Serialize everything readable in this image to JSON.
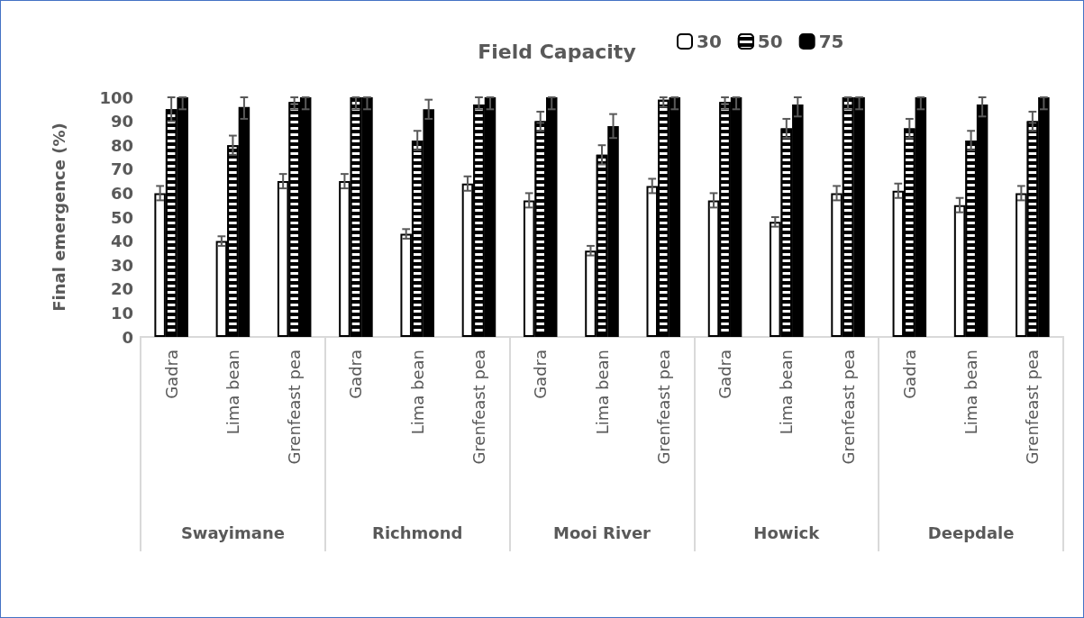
{
  "chart_data": {
    "type": "bar",
    "title": "Field Capacity",
    "ylabel": "Final emergence (%)",
    "categories": [
      "Gadra",
      "Lima bean",
      "Grenfeast pea",
      "Gadra",
      "Lima bean",
      "Grenfeast pea",
      "Gadra",
      "Lima bean",
      "Grenfeast pea",
      "Gadra",
      "Lima bean",
      "Grenfeast pea",
      "Gadra",
      "Lima bean",
      "Grenfeast pea"
    ],
    "annotations": [
      "Swayimane",
      "Richmond",
      "Mooi River",
      "Howick",
      "Deepdale"
    ],
    "series": [
      {
        "name": "30",
        "color": "#ffffff",
        "values": [
          60,
          40,
          65,
          65,
          43,
          64,
          57,
          36,
          63,
          57,
          48,
          60,
          61,
          55,
          60
        ],
        "errors": [
          3,
          2,
          3,
          3,
          2,
          3,
          3,
          2,
          3,
          3,
          2,
          3,
          3,
          3,
          3
        ]
      },
      {
        "name": "50",
        "color": "#000000",
        "values": [
          95,
          80,
          98,
          100,
          82,
          97,
          90,
          76,
          99,
          98,
          87,
          100,
          87,
          82,
          90
        ],
        "errors": [
          [
            90,
            100
          ],
          4,
          [
            95,
            100
          ],
          [
            95,
            100
          ],
          4,
          [
            95,
            100
          ],
          4,
          4,
          [
            96,
            100
          ],
          [
            95,
            100
          ],
          4,
          [
            95,
            100
          ],
          4,
          4,
          4
        ]
      },
      {
        "name": "75",
        "color": "#000000",
        "values": [
          100,
          96,
          100,
          100,
          95,
          100,
          100,
          88,
          100,
          100,
          97,
          100,
          100,
          97,
          100
        ],
        "errors": [
          [
            95,
            100
          ],
          [
            91,
            100
          ],
          [
            95,
            100
          ],
          [
            95,
            100
          ],
          4,
          [
            95,
            100
          ],
          [
            95,
            100
          ],
          5,
          [
            95,
            100
          ],
          [
            95,
            100
          ],
          [
            92,
            100
          ],
          [
            95,
            100
          ],
          [
            95,
            100
          ],
          [
            92,
            100
          ],
          [
            95,
            100
          ]
        ]
      }
    ],
    "ylim": [
      0,
      100
    ],
    "yticks": [
      0,
      10,
      20,
      30,
      40,
      50,
      60,
      70,
      80,
      90,
      100
    ],
    "legend": "top right"
  }
}
